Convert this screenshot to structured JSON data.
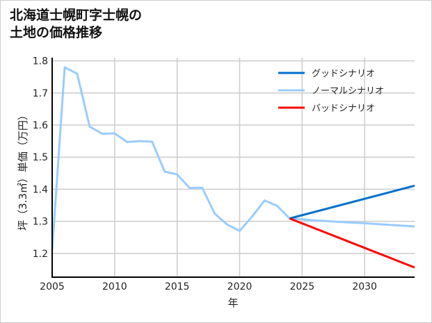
{
  "chart_data": {
    "type": "line",
    "title_lines": [
      "北海道士幌町字士幌の",
      "土地の価格推移"
    ],
    "xlabel": "年",
    "ylabel": "坪（3.3㎡）単価（万円）",
    "xlim": [
      2005,
      2034
    ],
    "ylim": [
      1.126,
      1.81
    ],
    "xticks": [
      2005,
      2010,
      2015,
      2020,
      2025,
      2030
    ],
    "yticks": [
      1.2,
      1.3,
      1.4,
      1.5,
      1.6,
      1.7,
      1.8
    ],
    "ytick_labels": [
      "1.2",
      "1.3",
      "1.4",
      "1.5",
      "1.6",
      "1.7",
      "1.8"
    ],
    "grid": true,
    "legend_position": "top-right",
    "series": [
      {
        "name": "グッドシナリオ",
        "color": "#0070cc",
        "x": [
          2024,
          2034
        ],
        "y": [
          1.309,
          1.411
        ]
      },
      {
        "name": "ノーマルシナリオ",
        "color": "#99ccff",
        "x": [
          2005,
          2006,
          2007,
          2008,
          2009,
          2010,
          2011,
          2012,
          2013,
          2014,
          2015,
          2016,
          2017,
          2018,
          2019,
          2020,
          2021,
          2022,
          2023,
          2024,
          2026,
          2028,
          2030,
          2032,
          2034
        ],
        "y": [
          1.21,
          1.78,
          1.76,
          1.595,
          1.573,
          1.574,
          1.547,
          1.55,
          1.548,
          1.455,
          1.446,
          1.404,
          1.405,
          1.324,
          1.29,
          1.27,
          1.315,
          1.365,
          1.348,
          1.309,
          1.303,
          1.298,
          1.294,
          1.289,
          1.284
        ]
      },
      {
        "name": "バッドシナリオ",
        "color": "#ff0000",
        "x": [
          2024,
          2034
        ],
        "y": [
          1.309,
          1.156
        ]
      }
    ]
  }
}
